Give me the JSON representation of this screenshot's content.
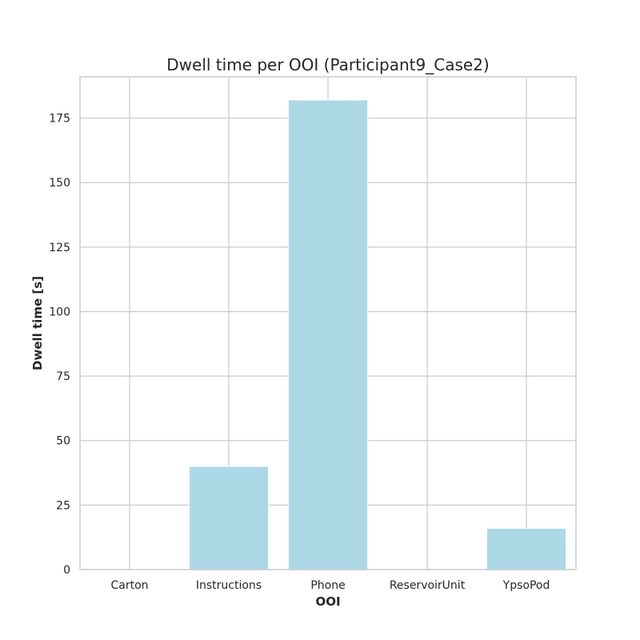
{
  "chart_data": {
    "type": "bar",
    "title": "Dwell time per OOI (Participant9_Case2)",
    "xlabel": "OOI",
    "ylabel": "Dwell time [s]",
    "categories": [
      "Carton",
      "Instructions",
      "Phone",
      "ReservoirUnit",
      "YpsoPod"
    ],
    "values": [
      0,
      40,
      182,
      0,
      16
    ],
    "ylim": [
      0,
      191
    ],
    "yticks": [
      0,
      25,
      50,
      75,
      100,
      125,
      150,
      175
    ],
    "grid": true,
    "legend": "none",
    "bar_color": "#add8e6"
  }
}
